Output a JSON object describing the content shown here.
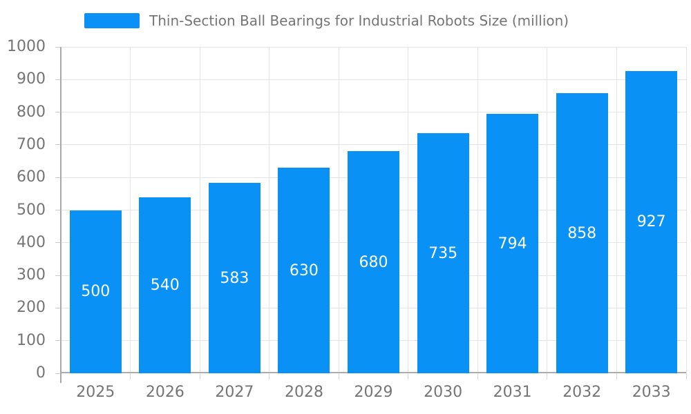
{
  "chart_data": {
    "type": "bar",
    "title": "Thin-Section Ball Bearings for Industrial Robots Size (million)",
    "categories": [
      "2025",
      "2026",
      "2027",
      "2028",
      "2029",
      "2030",
      "2031",
      "2032",
      "2033"
    ],
    "values": [
      500,
      540,
      583,
      630,
      680,
      735,
      794,
      858,
      927
    ],
    "series": [
      {
        "name": "Thin-Section Ball Bearings for Industrial Robots Size (million)",
        "values": [
          500,
          540,
          583,
          630,
          680,
          735,
          794,
          858,
          927
        ]
      }
    ],
    "xlabel": "",
    "ylabel": "",
    "ylim": [
      0,
      1000
    ],
    "yticks": [
      0,
      100,
      200,
      300,
      400,
      500,
      600,
      700,
      800,
      900,
      1000
    ],
    "grid": true,
    "legend_position": "top",
    "bar_label_position": "inside-center",
    "bar_color": "#0991F5",
    "bar_label_color": "#FFFFFF"
  },
  "colors": {
    "accent": "#0991F5",
    "background": "#FFFFFF",
    "gridline": "#E4E4E4",
    "axis_line": "#ABABAB",
    "tick": "#C9C9C9",
    "axis_text": "#757575",
    "legend_text": "#757575"
  }
}
